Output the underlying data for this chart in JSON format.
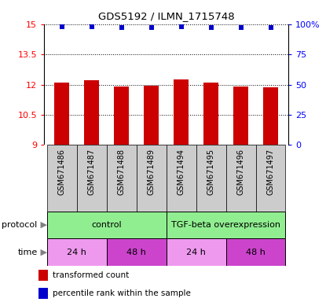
{
  "title": "GDS5192 / ILMN_1715748",
  "samples": [
    "GSM671486",
    "GSM671487",
    "GSM671488",
    "GSM671489",
    "GSM671494",
    "GSM671495",
    "GSM671496",
    "GSM671497"
  ],
  "bar_values": [
    12.1,
    12.22,
    11.9,
    11.95,
    12.27,
    12.1,
    11.9,
    11.85
  ],
  "percentile_values": [
    98,
    98,
    97,
    97,
    98,
    97,
    97,
    97
  ],
  "bar_color": "#cc0000",
  "dot_color": "#0000cc",
  "ylim_left": [
    9,
    15
  ],
  "yticks_left": [
    9,
    10.5,
    12,
    13.5,
    15
  ],
  "ytick_labels_left": [
    "9",
    "10.5",
    "12",
    "13.5",
    "15"
  ],
  "ylim_right": [
    0,
    100
  ],
  "yticks_right": [
    0,
    25,
    50,
    75,
    100
  ],
  "ytick_labels_right": [
    "0",
    "25",
    "50",
    "75",
    "100%"
  ],
  "protocol_labels": [
    "control",
    "TGF-beta overexpression"
  ],
  "protocol_colors": [
    "#90ee90",
    "#90ee90"
  ],
  "time_labels": [
    "24 h",
    "48 h",
    "24 h",
    "48 h"
  ],
  "time_colors": [
    "#ee99ee",
    "#cc44cc",
    "#ee99ee",
    "#cc44cc"
  ],
  "legend_red_label": "transformed count",
  "legend_blue_label": "percentile rank within the sample",
  "bar_width": 0.5,
  "sample_box_color": "#cccccc",
  "bg_color": "#ffffff"
}
